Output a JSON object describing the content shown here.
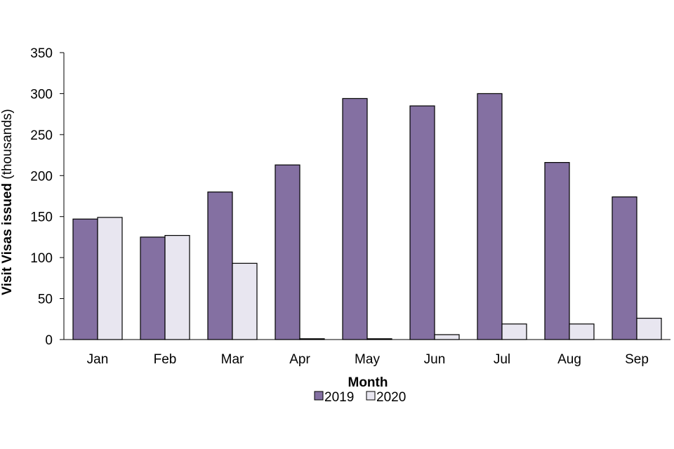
{
  "chart_data": {
    "type": "bar",
    "categories": [
      "Jan",
      "Feb",
      "Mar",
      "Apr",
      "May",
      "Jun",
      "Jul",
      "Aug",
      "Sep"
    ],
    "series": [
      {
        "name": "2019",
        "color": "#8470a2",
        "values": [
          147,
          125,
          180,
          213,
          294,
          285,
          300,
          216,
          174
        ]
      },
      {
        "name": "2020",
        "color": "#e8e6f0",
        "values": [
          149,
          127,
          93,
          1,
          1,
          6,
          19,
          19,
          26
        ]
      }
    ],
    "xlabel": "Month",
    "ylabel_bold": "Visit Visas issued",
    "ylabel_rest": " (thousands)",
    "ylim": [
      0,
      350
    ],
    "yticks": [
      0,
      50,
      100,
      150,
      200,
      250,
      300,
      350
    ],
    "grid": false,
    "legend_position": "bottom"
  }
}
